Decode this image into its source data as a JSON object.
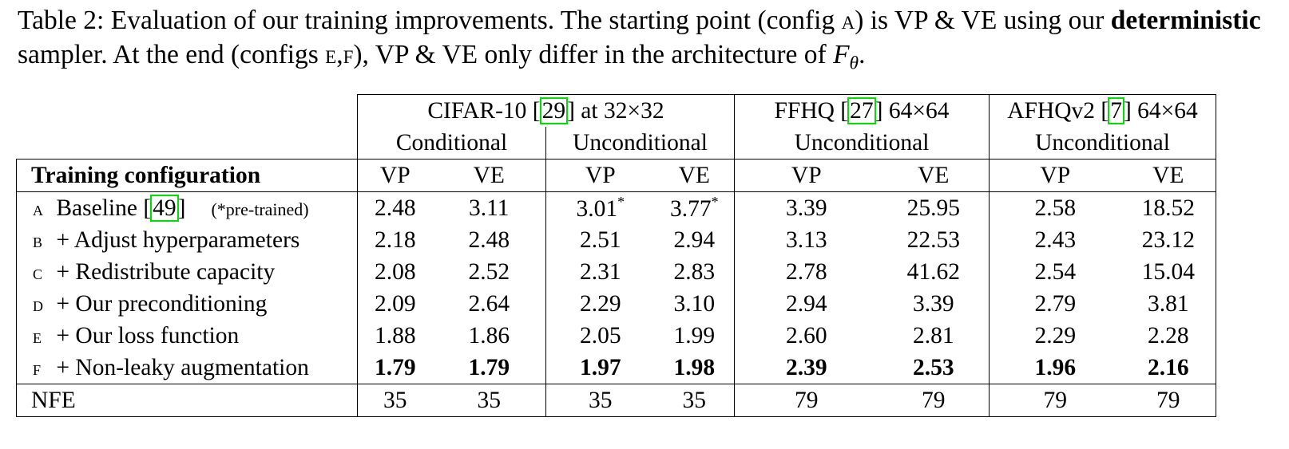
{
  "caption": {
    "label": "Table 2:",
    "text1": " Evaluation of our training improvements. The starting point (config ",
    "config_a": "a",
    "text2": ") is VP & VE using our ",
    "bold_word": "deterministic",
    "text3": " sampler. At the end (configs ",
    "config_ef": "e,f",
    "text4": "), VP & VE only differ in the architecture of ",
    "math_f": "F",
    "math_sub": "θ",
    "end": "."
  },
  "table": {
    "datasets": [
      {
        "name": "CIFAR-10 [",
        "cite": "29",
        "suffix": "] at 32×32"
      },
      {
        "name": "FFHQ [",
        "cite": "27",
        "suffix": "] 64×64"
      },
      {
        "name": "AFHQv2 [",
        "cite": "7",
        "suffix": "] 64×64"
      }
    ],
    "subheaders": [
      "Conditional",
      "Unconditional",
      "Unconditional",
      "Unconditional"
    ],
    "col_header": "Training configuration",
    "vp": "VP",
    "ve": "VE",
    "rows": [
      {
        "letter": "a",
        "label": "Baseline [",
        "cite": "49",
        "label_end": "]",
        "note": "(*pre-trained)",
        "values": [
          "2.48",
          "3.11",
          "3.01",
          "3.77",
          "3.39",
          "25.95",
          "2.58",
          "18.52"
        ],
        "star": "*"
      },
      {
        "letter": "b",
        "label": "+ Adjust hyperparameters",
        "values": [
          "2.18",
          "2.48",
          "2.51",
          "2.94",
          "3.13",
          "22.53",
          "2.43",
          "23.12"
        ]
      },
      {
        "letter": "c",
        "label": "+ Redistribute capacity",
        "values": [
          "2.08",
          "2.52",
          "2.31",
          "2.83",
          "2.78",
          "41.62",
          "2.54",
          "15.04"
        ]
      },
      {
        "letter": "d",
        "label": "+ Our preconditioning",
        "values": [
          "2.09",
          "2.64",
          "2.29",
          "3.10",
          "2.94",
          "3.39",
          "2.79",
          "3.81"
        ]
      },
      {
        "letter": "e",
        "label": "+ Our loss function",
        "values": [
          "1.88",
          "1.86",
          "2.05",
          "1.99",
          "2.60",
          "2.81",
          "2.29",
          "2.28"
        ]
      },
      {
        "letter": "f",
        "label": "+ Non-leaky augmentation",
        "values": [
          "1.79",
          "1.79",
          "1.97",
          "1.98",
          "2.39",
          "2.53",
          "1.96",
          "2.16"
        ]
      }
    ],
    "nfe": {
      "label": "NFE",
      "values": [
        "35",
        "35",
        "35",
        "35",
        "79",
        "79",
        "79",
        "79"
      ]
    }
  }
}
